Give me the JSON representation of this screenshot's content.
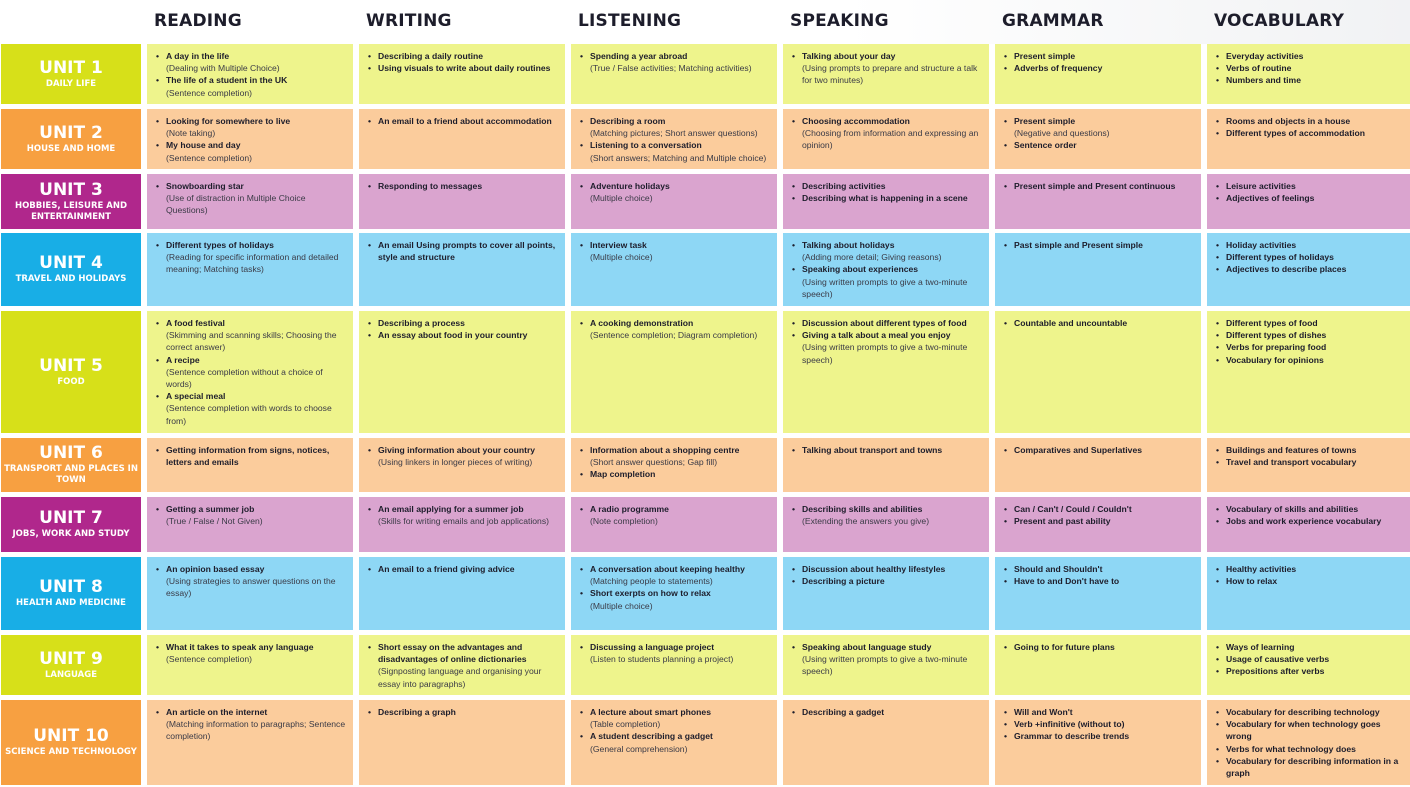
{
  "columns": [
    "READING",
    "WRITING",
    "LISTENING",
    "SPEAKING",
    "GRAMMAR",
    "VOCABULARY"
  ],
  "colors": {
    "yellow_unit": "#d7e019",
    "yellow_cell": "#eef48c",
    "orange_unit": "#f7a041",
    "orange_cell": "#fbcc9c",
    "magenta_unit": "#b0278c",
    "magenta_cell": "#daa4cf",
    "blue_unit": "#18aee6",
    "blue_cell": "#8ed7f5"
  },
  "units": [
    {
      "id": "unit1",
      "number": "UNIT 1",
      "name": "DAILY LIFE",
      "theme": "yellow",
      "cells": [
        [
          {
            "t": "A day in the life",
            "n": "(Dealing with Multiple Choice)"
          },
          {
            "t": "The life of a student in the UK",
            "n": "(Sentence completion)"
          }
        ],
        [
          {
            "t": "Describing a daily routine"
          },
          {
            "t": "Using visuals to write about daily routines"
          }
        ],
        [
          {
            "t": "Spending a year abroad",
            "n": "(True / False activities; Matching activities)"
          }
        ],
        [
          {
            "t": "Talking about your day",
            "n": "(Using prompts to prepare and structure a talk for two minutes)"
          }
        ],
        [
          {
            "t": "Present simple"
          },
          {
            "t": "Adverbs of frequency"
          }
        ],
        [
          {
            "t": "Everyday activities"
          },
          {
            "t": "Verbs of routine"
          },
          {
            "t": "Numbers and time"
          }
        ]
      ]
    },
    {
      "id": "unit2",
      "number": "UNIT 2",
      "name": "HOUSE AND HOME",
      "theme": "orange",
      "cells": [
        [
          {
            "t": "Looking for somewhere to live",
            "n": "(Note taking)"
          },
          {
            "t": "My house and day",
            "n": "(Sentence completion)"
          }
        ],
        [
          {
            "t": "An email to a friend about accommodation"
          }
        ],
        [
          {
            "t": "Describing a room",
            "n": "(Matching pictures; Short answer questions)"
          },
          {
            "t": "Listening to a conversation",
            "n": "(Short answers; Matching and Multiple choice)"
          }
        ],
        [
          {
            "t": "Choosing accommodation",
            "n": "(Choosing from information and expressing an opinion)"
          }
        ],
        [
          {
            "t": "Present simple",
            "n": "(Negative and questions)"
          },
          {
            "t": "Sentence order"
          }
        ],
        [
          {
            "t": "Rooms and objects in a house"
          },
          {
            "t": "Different types of accommodation"
          }
        ]
      ]
    },
    {
      "id": "unit3",
      "number": "UNIT 3",
      "name": "HOBBIES, LEISURE AND ENTERTAINMENT",
      "theme": "magenta",
      "cells": [
        [
          {
            "t": "Snowboarding star",
            "n": "(Use of distraction in Multiple Choice Questions)"
          }
        ],
        [
          {
            "t": "Responding to messages"
          }
        ],
        [
          {
            "t": "Adventure holidays",
            "n": "(Multiple choice)"
          }
        ],
        [
          {
            "t": "Describing activities"
          },
          {
            "t": "Describing what is happening  in a scene"
          }
        ],
        [
          {
            "t": "Present simple and Present continuous"
          }
        ],
        [
          {
            "t": "Leisure activities"
          },
          {
            "t": "Adjectives of feelings"
          }
        ]
      ]
    },
    {
      "id": "unit4",
      "number": "UNIT 4",
      "name": "TRAVEL AND HOLIDAYS",
      "theme": "blue",
      "cells": [
        [
          {
            "t": "Different types of holidays",
            "n": "(Reading for specific information  and detailed meaning;  Matching tasks)"
          }
        ],
        [
          {
            "t": "An email  Using prompts to cover all points,  style and structure"
          }
        ],
        [
          {
            "t": "Interview task",
            "n": "(Multiple choice)"
          }
        ],
        [
          {
            "t": "Talking about holidays",
            "n": "(Adding more detail; Giving reasons)"
          },
          {
            "t": "Speaking about experiences",
            "n": "(Using written prompts to give a two-minute speech)"
          }
        ],
        [
          {
            "t": "Past simple and  Present simple"
          }
        ],
        [
          {
            "t": "Holiday activities"
          },
          {
            "t": "Different types of holidays"
          },
          {
            "t": "Adjectives to describe places"
          }
        ]
      ]
    },
    {
      "id": "unit5",
      "number": "UNIT 5",
      "name": "FOOD",
      "theme": "yellow",
      "cells": [
        [
          {
            "t": "A food festival",
            "n": "(Skimming and scanning skills; Choosing the correct answer)"
          },
          {
            "t": "A recipe",
            "n": "(Sentence completion without a choice of words)"
          },
          {
            "t": "A special meal",
            "n": "(Sentence completion with words to choose from)"
          }
        ],
        [
          {
            "t": "Describing a process"
          },
          {
            "t": "An essay about food in your country"
          }
        ],
        [
          {
            "t": "A cooking demonstration",
            "n": "(Sentence completion; Diagram completion)"
          }
        ],
        [
          {
            "t": "Discussion about different  types of food"
          },
          {
            "t": "Giving a talk about a meal you  enjoy",
            "n": "(Using written prompts to give a two-minute speech)"
          }
        ],
        [
          {
            "t": "Countable and uncountable"
          }
        ],
        [
          {
            "t": "Different types of food"
          },
          {
            "t": "Different types of dishes"
          },
          {
            "t": "Verbs for preparing food"
          },
          {
            "t": "Vocabulary for opinions"
          }
        ]
      ]
    },
    {
      "id": "unit6",
      "number": "UNIT 6",
      "name": "TRANSPORT AND PLACES IN TOWN",
      "theme": "orange",
      "cells": [
        [
          {
            "t": "Getting information from signs, notices, letters and emails"
          }
        ],
        [
          {
            "t": "Giving information about your country",
            "n": "(Using linkers in longer pieces of writing)"
          }
        ],
        [
          {
            "t": "Information about a shopping centre",
            "n": "(Short answer questions; Gap fill)"
          },
          {
            "t": "Map completion"
          }
        ],
        [
          {
            "t": "Talking about transport and towns"
          }
        ],
        [
          {
            "t": "Comparatives and  Superlatives"
          }
        ],
        [
          {
            "t": "Buildings and features of towns"
          },
          {
            "t": "Travel and transport vocabulary"
          }
        ]
      ]
    },
    {
      "id": "unit7",
      "number": "UNIT 7",
      "name": "JOBS, WORK AND STUDY",
      "theme": "magenta",
      "cells": [
        [
          {
            "t": "Getting a summer job",
            "n": "(True / False / Not Given)"
          }
        ],
        [
          {
            "t": "An email applying for a summer job",
            "n": "(Skills for writing emails and job applications)"
          }
        ],
        [
          {
            "t": "A radio programme",
            "n": "(Note completion)"
          }
        ],
        [
          {
            "t": "Describing skills and abilities",
            "n": "(Extending the answers you give)"
          }
        ],
        [
          {
            "t": "Can / Can't / Could / Couldn't"
          },
          {
            "t": "Present and past ability"
          }
        ],
        [
          {
            "t": "Vocabulary of skills and abilities"
          },
          {
            "t": "Jobs and work experience  vocabulary"
          }
        ]
      ]
    },
    {
      "id": "unit8",
      "number": "UNIT 8",
      "name": "HEALTH AND MEDICINE",
      "theme": "blue",
      "cells": [
        [
          {
            "t": "An opinion based essay",
            "n": "(Using strategies to answer questions on the essay)"
          }
        ],
        [
          {
            "t": "An email to a friend giving advice"
          }
        ],
        [
          {
            "t": "A conversation about keeping healthy",
            "n": "(Matching people to statements)"
          },
          {
            "t": "Short exerpts on how to relax",
            "n": "(Multiple choice)"
          }
        ],
        [
          {
            "t": "Discussion about healthy  lifestyles"
          },
          {
            "t": "Describing a picture"
          }
        ],
        [
          {
            "t": "Should and Shouldn't"
          },
          {
            "t": "Have to and Don't have to"
          }
        ],
        [
          {
            "t": "Healthy activities"
          },
          {
            "t": "How to relax"
          }
        ]
      ]
    },
    {
      "id": "unit9",
      "number": "UNIT 9",
      "name": "LANGUAGE",
      "theme": "yellow",
      "cells": [
        [
          {
            "t": "What it takes to speak any language",
            "n": "(Sentence completion)"
          }
        ],
        [
          {
            "t": "Short essay on the advantages and disadvantages of online dictionaries",
            "n": "(Signposting language and organising your essay into paragraphs)"
          }
        ],
        [
          {
            "t": "Discussing  a language project",
            "n": "(Listen to students planning a  project)"
          }
        ],
        [
          {
            "t": "Speaking about language study",
            "n": "(Using written prompts to give a two-minute speech)"
          }
        ],
        [
          {
            "t": "Going to for future plans"
          }
        ],
        [
          {
            "t": "Ways of learning"
          },
          {
            "t": "Usage of causative verbs"
          },
          {
            "t": "Prepositions after verbs"
          }
        ]
      ]
    },
    {
      "id": "unit10",
      "number": "UNIT 10",
      "name": "SCIENCE AND TECHNOLOGY",
      "theme": "orange",
      "cells": [
        [
          {
            "t": "An article on the internet",
            "n": "(Matching information to  paragraphs; Sentence  completion)"
          }
        ],
        [
          {
            "t": "Describing a graph"
          }
        ],
        [
          {
            "t": "A lecture about smart phones",
            "n": "(Table completion)"
          },
          {
            "t": "A student describing a gadget",
            "n": "(General comprehension)"
          }
        ],
        [
          {
            "t": "Describing a gadget"
          }
        ],
        [
          {
            "t": "Will and Won't"
          },
          {
            "t": "Verb +infinitive (without to)"
          },
          {
            "t": "Grammar to describe trends"
          }
        ],
        [
          {
            "t": "Vocabulary for describing  technology"
          },
          {
            "t": "Vocabulary for when technology goes wrong"
          },
          {
            "t": "Verbs for what technology does"
          },
          {
            "t": "Vocabulary for describing  information in a graph"
          }
        ]
      ]
    }
  ]
}
